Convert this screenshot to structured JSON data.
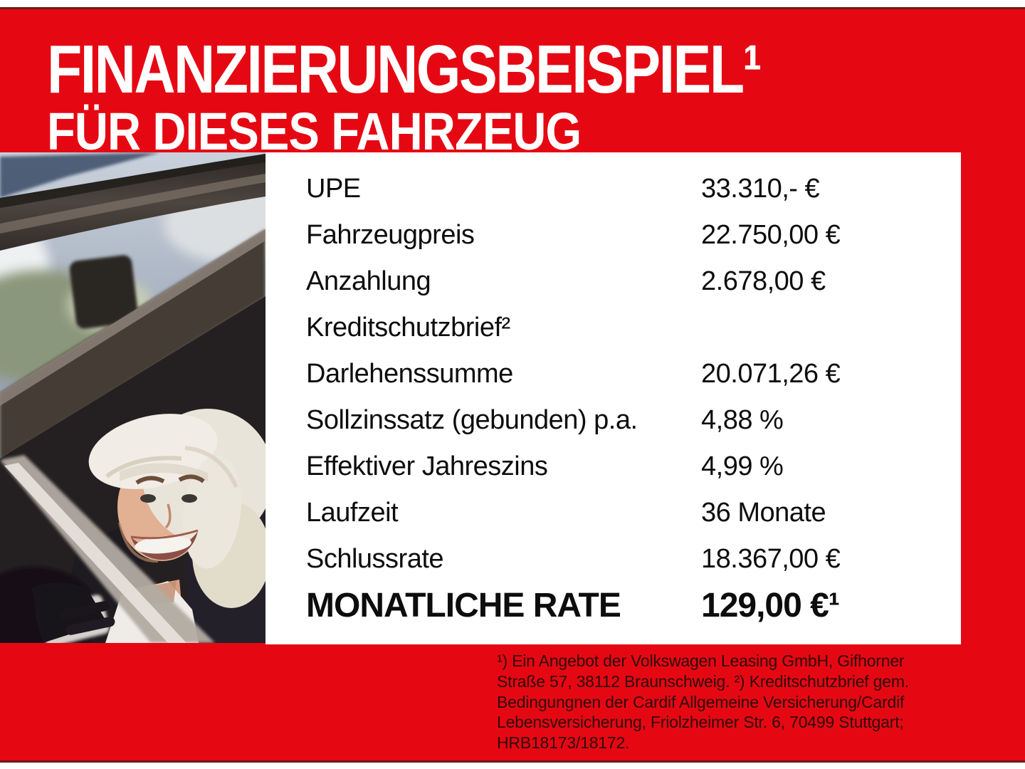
{
  "colors": {
    "brand_red": "#e50813",
    "divider_dark": "#6e1b18",
    "panel_white": "#ffffff",
    "table_text": "#0d0d0d",
    "legal_text": "#2d0a0b",
    "header_text": "#ffffff"
  },
  "header": {
    "title": "FINANZIERUNGSBEISPIEL¹",
    "subtitle": "FÜR DIESES FAHRZEUG"
  },
  "photo": {
    "description": "Smiling woman with short platinum hair sitting in a car, seen through the open door window"
  },
  "financing_table": {
    "rows": [
      {
        "label": "UPE",
        "value": "33.310,- €"
      },
      {
        "label": "Fahrzeugpreis",
        "value": "22.750,00 €"
      },
      {
        "label": "Anzahlung",
        "value": "2.678,00 €"
      },
      {
        "label": "Kreditschutzbrief²",
        "value": ""
      },
      {
        "label": "Darlehenssumme",
        "value": "20.071,26 €"
      },
      {
        "label": "Sollzinssatz (gebunden) p.a.",
        "value": "4,88 %"
      },
      {
        "label": "Effektiver Jahreszins",
        "value": "4,99 %"
      },
      {
        "label": "Laufzeit",
        "value": "36 Monate"
      },
      {
        "label": "Schlussrate",
        "value": "18.367,00 €"
      },
      {
        "label": "MONATLICHE RATE",
        "value": "129,00 €¹",
        "emphasis": true
      }
    ]
  },
  "legal": {
    "lines": [
      "¹) Ein Angebot der Volkswagen Leasing GmbH, Gifhorner",
      "Straße 57, 38112 Braunschweig. ²) Kreditschutzbrief gem.",
      "Bedingungnen der Cardif Allgemeine Versicherung/Cardif",
      "Lebensversicherung, Friolzheimer Str. 6, 70499 Stuttgart;",
      "HRB18173/18172."
    ]
  }
}
